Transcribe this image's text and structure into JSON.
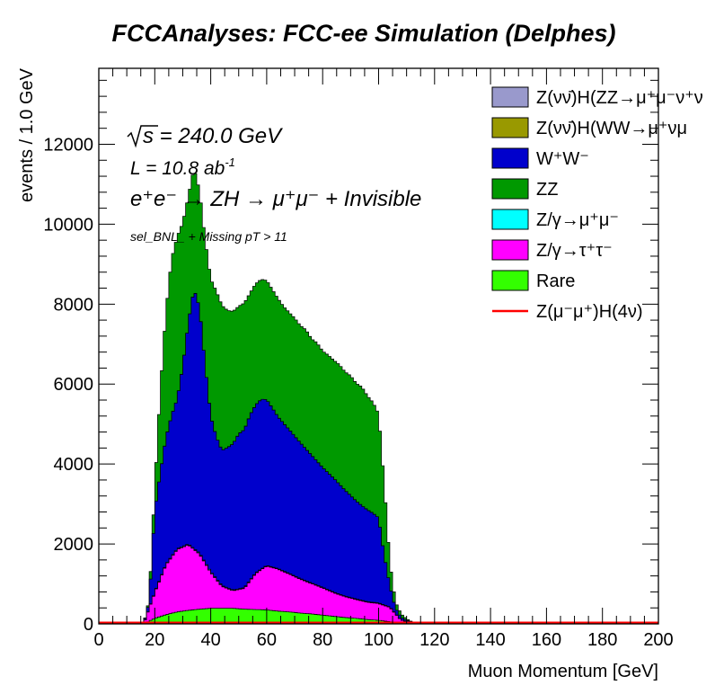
{
  "chart_data": {
    "type": "bar",
    "stacked": true,
    "title": "FCCAnalyses: FCC-ee Simulation (Delphes)",
    "xlabel": "Muon Momentum [GeV]",
    "ylabel": "events / 1.0 GeV",
    "xlim": [
      0,
      200
    ],
    "ylim": [
      0,
      13900
    ],
    "x_ticks": [
      "0",
      "20",
      "40",
      "60",
      "80",
      "100",
      "120",
      "140",
      "160",
      "180",
      "200"
    ],
    "y_ticks": [
      "0",
      "2000",
      "4000",
      "6000",
      "8000",
      "10000",
      "12000"
    ],
    "annotations": {
      "sqrt_s": "s = 240.0 GeV",
      "lumi": "L = 10.8 ab",
      "lumi_exp": "-1",
      "process": "e⁺e⁻ → ZH → μ⁺μ⁻ + Invisible",
      "selection": "sel_BNL_ + Missing pT > 11"
    },
    "legend_position": "top-right",
    "legend": [
      {
        "label": "Z(νν̄)H(ZZ→μ⁺μ⁻ν⁺ν",
        "color": "#9999cc",
        "style": "box"
      },
      {
        "label": "Z(νν̄)H(WW→μ⁺νμ",
        "color": "#999900",
        "style": "box"
      },
      {
        "label": "W⁺W⁻",
        "color": "#0000cc",
        "style": "box"
      },
      {
        "label": "ZZ",
        "color": "#009900",
        "style": "box"
      },
      {
        "label": "Z/γ→μ⁺μ⁻",
        "color": "#00ffff",
        "style": "box"
      },
      {
        "label": "Z/γ→τ⁺τ⁻",
        "color": "#ff00ff",
        "style": "box"
      },
      {
        "label": "Rare",
        "color": "#33ff00",
        "style": "box"
      },
      {
        "label": "Z(μ⁻μ⁺)H(4ν)",
        "color": "#ff0000",
        "style": "line"
      }
    ],
    "series": [
      {
        "key": "rare",
        "color": "#33ff00",
        "x": [
          16,
          20,
          24,
          28,
          32,
          36,
          40,
          44,
          48,
          52,
          56,
          60,
          64,
          68,
          72,
          76,
          80,
          84,
          88,
          92,
          96,
          100,
          104,
          108,
          112,
          116,
          120
        ],
        "values": [
          0,
          140,
          230,
          300,
          340,
          370,
          390,
          390,
          390,
          370,
          360,
          350,
          320,
          300,
          270,
          250,
          220,
          190,
          160,
          140,
          110,
          90,
          55,
          15,
          5,
          0,
          0
        ]
      },
      {
        "key": "ztautau",
        "color": "#ff00ff",
        "x": [
          16,
          20,
          24,
          28,
          32,
          36,
          40,
          44,
          48,
          52,
          56,
          60,
          64,
          68,
          72,
          76,
          80,
          84,
          88,
          92,
          96,
          100,
          104,
          108,
          112,
          116,
          120
        ],
        "values": [
          0,
          650,
          1250,
          1560,
          1640,
          1380,
          900,
          550,
          440,
          520,
          900,
          1100,
          1050,
          950,
          850,
          760,
          680,
          590,
          520,
          470,
          430,
          420,
          360,
          80,
          15,
          0,
          0
        ]
      },
      {
        "key": "zmumu",
        "color": "#00ffff",
        "x": [
          16,
          20,
          30,
          40,
          60,
          80,
          100,
          108,
          120
        ],
        "values": [
          0,
          15,
          20,
          20,
          15,
          15,
          15,
          5,
          0
        ]
      },
      {
        "key": "ww",
        "color": "#0000cc",
        "x": [
          16,
          18,
          20,
          22,
          24,
          26,
          28,
          30,
          32,
          34,
          36,
          38,
          40,
          42,
          44,
          46,
          48,
          50,
          52,
          54,
          56,
          58,
          60,
          62,
          64,
          66,
          68,
          70,
          72,
          74,
          76,
          78,
          80,
          82,
          84,
          86,
          88,
          90,
          92,
          94,
          96,
          98,
          100,
          102,
          104,
          106,
          108,
          110,
          112,
          114,
          116,
          118,
          120
        ],
        "values": [
          0,
          150,
          2030,
          2640,
          3170,
          3530,
          3750,
          4510,
          5550,
          6500,
          6150,
          4950,
          3890,
          3550,
          3380,
          3510,
          3660,
          3880,
          3950,
          4130,
          4200,
          4250,
          4150,
          3980,
          3800,
          3700,
          3600,
          3500,
          3400,
          3300,
          3200,
          3100,
          3000,
          2920,
          2850,
          2750,
          2650,
          2550,
          2450,
          2370,
          2300,
          2230,
          2130,
          1250,
          540,
          140,
          60,
          30,
          15,
          10,
          5,
          2,
          0
        ]
      },
      {
        "key": "zz",
        "color": "#009900",
        "x": [
          16,
          18,
          20,
          22,
          24,
          26,
          28,
          30,
          32,
          34,
          36,
          38,
          40,
          42,
          44,
          46,
          48,
          50,
          52,
          54,
          56,
          58,
          60,
          62,
          64,
          66,
          68,
          70,
          72,
          74,
          76,
          78,
          80,
          82,
          84,
          86,
          88,
          90,
          92,
          94,
          96,
          98,
          100,
          102,
          104,
          106,
          108,
          110,
          112,
          114,
          116,
          118,
          120
        ],
        "values": [
          0,
          50,
          600,
          2050,
          3150,
          3910,
          4060,
          3580,
          3150,
          3020,
          2920,
          3120,
          3430,
          3640,
          3630,
          3430,
          3310,
          3190,
          3170,
          3050,
          3030,
          3000,
          2980,
          2960,
          2960,
          2920,
          2930,
          2950,
          2930,
          2980,
          2910,
          2960,
          2910,
          2950,
          2950,
          2990,
          2960,
          3000,
          2940,
          2970,
          2850,
          2770,
          2600,
          1800,
          580,
          150,
          90,
          35,
          10,
          0,
          0,
          0,
          0
        ]
      }
    ],
    "signal_line": {
      "color": "#ff0000",
      "x": [
        0,
        200
      ],
      "values": [
        5,
        5
      ]
    }
  }
}
